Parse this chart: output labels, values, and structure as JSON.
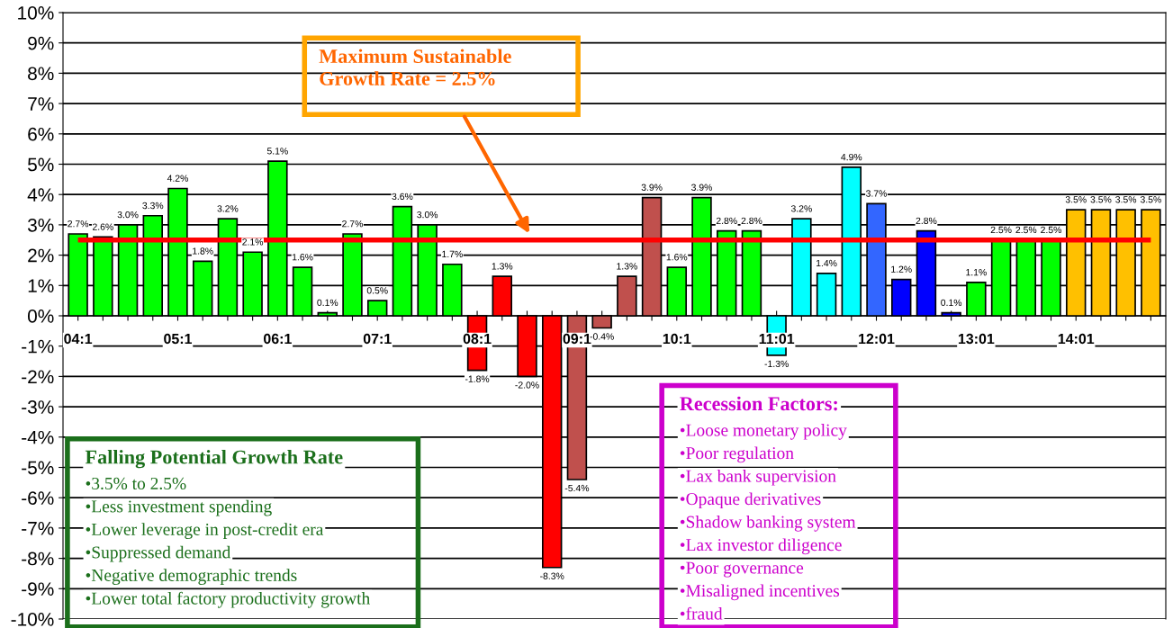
{
  "chart_data": {
    "type": "bar",
    "categories": [
      "04:1",
      null,
      null,
      null,
      "05:1",
      null,
      null,
      null,
      "06:1",
      null,
      null,
      null,
      "07:1",
      null,
      null,
      null,
      "08:1",
      null,
      null,
      null,
      "09:1",
      null,
      null,
      null,
      "10:1",
      null,
      null,
      null,
      "11:01",
      null,
      null,
      null,
      "12:01",
      null,
      null,
      null,
      "13:01",
      null,
      null,
      null,
      "14:01",
      null,
      null,
      null
    ],
    "values": [
      2.7,
      2.6,
      3.0,
      3.3,
      4.2,
      1.8,
      3.2,
      2.1,
      5.1,
      1.6,
      0.1,
      2.7,
      0.5,
      3.6,
      3.0,
      1.7,
      -1.8,
      1.3,
      -2.0,
      -8.3,
      -5.4,
      -0.4,
      1.3,
      3.9,
      1.6,
      3.9,
      2.8,
      2.8,
      -1.3,
      3.2,
      1.4,
      4.9,
      3.7,
      1.2,
      2.8,
      0.1,
      1.1,
      2.5,
      2.5,
      2.5,
      3.5,
      3.5,
      3.5,
      3.5
    ],
    "colors": [
      "#00ff00",
      "#00ff00",
      "#00ff00",
      "#00ff00",
      "#00ff00",
      "#00ff00",
      "#00ff00",
      "#00ff00",
      "#00ff00",
      "#00ff00",
      "#00ff00",
      "#00ff00",
      "#00ff00",
      "#00ff00",
      "#00ff00",
      "#00ff00",
      "#ff0000",
      "#ff0000",
      "#ff0000",
      "#ff0000",
      "#c0504d",
      "#c0504d",
      "#c0504d",
      "#c0504d",
      "#00ff00",
      "#00ff00",
      "#00ff00",
      "#00ff00",
      "#00ffff",
      "#00ffff",
      "#00ffff",
      "#00ffff",
      "#3366ff",
      "#0000ff",
      "#0000ff",
      "#0000ff",
      "#00ff00",
      "#00ff00",
      "#00ff00",
      "#00ff00",
      "#ffc000",
      "#ffc000",
      "#ffc000",
      "#ffc000"
    ],
    "value_labels": [
      "2.7%",
      "2.6%",
      "3.0%",
      "3.3%",
      "4.2%",
      "1.8%",
      "3.2%",
      "2.1%",
      "5.1%",
      "1.6%",
      "0.1%",
      "2.7%",
      "0.5%",
      "3.6%",
      "3.0%",
      "1.7%",
      "-1.8%",
      "1.3%",
      "-2.0%",
      "-8.3%",
      "-5.4%",
      "-0.4%",
      "1.3%",
      "3.9%",
      "1.6%",
      "3.9%",
      "2.8%",
      "2.8%",
      "-1.3%",
      "3.2%",
      "1.4%",
      "4.9%",
      "3.7%",
      "1.2%",
      "2.8%",
      "0.1%",
      "1.1%",
      "2.5%",
      "2.5%",
      "2.5%",
      "3.5%",
      "3.5%",
      "3.5%",
      "3.5%"
    ],
    "ylim": [
      -10,
      10
    ],
    "yticks": [
      {
        "value": -10,
        "label": "-10%"
      },
      {
        "value": -9,
        "label": "-9%"
      },
      {
        "value": -8,
        "label": "-8%"
      },
      {
        "value": -7,
        "label": "-7%"
      },
      {
        "value": -6,
        "label": "-6%"
      },
      {
        "value": -5,
        "label": "-5%"
      },
      {
        "value": -4,
        "label": "-4%"
      },
      {
        "value": -3,
        "label": "-3%"
      },
      {
        "value": -2,
        "label": "-2%"
      },
      {
        "value": -1,
        "label": "-1%"
      },
      {
        "value": 0,
        "label": "0%"
      },
      {
        "value": 1,
        "label": "1%"
      },
      {
        "value": 2,
        "label": "2%"
      },
      {
        "value": 3,
        "label": "3%"
      },
      {
        "value": 4,
        "label": "4%"
      },
      {
        "value": 5,
        "label": "5%"
      },
      {
        "value": 6,
        "label": "6%"
      },
      {
        "value": 7,
        "label": "7%"
      },
      {
        "value": 8,
        "label": "8%"
      },
      {
        "value": 9,
        "label": "9%"
      },
      {
        "value": 10,
        "label": "10%"
      }
    ],
    "grid": "y",
    "ref_lines": [
      {
        "axis": "y",
        "value": 2.5,
        "label": null,
        "color": "#ff0000"
      }
    ],
    "annotations": [
      "Maximum Sustainable\nGrowth Rate = 2.5%",
      "Falling Potential Growth Rate",
      "•3.5% to 2.5%",
      "•Less investment spending",
      "•Lower leverage in post-credit era",
      "•Suppressed demand",
      "•Negative demographic trends",
      "•Lower total factory productivity growth",
      "Recession Factors:",
      "•Loose monetary policy",
      "•Poor regulation",
      "•Lax bank supervision",
      "•Opaque derivatives",
      "•Shadow banking system",
      "•Lax investor diligence",
      "•Poor governance",
      "•Misaligned incentives",
      "•fraud"
    ]
  }
}
